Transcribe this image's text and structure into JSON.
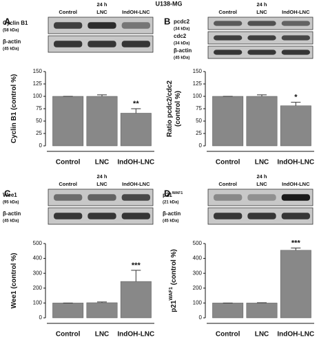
{
  "figure_title": "U138-MG",
  "chart_data": [
    {
      "type": "bar",
      "panel": "A",
      "time_label": "24 h",
      "lanes": [
        "Control",
        "LNC",
        "IndOH-LNC"
      ],
      "blot_rows": [
        {
          "name": [
            {
              "text": "Cyclin B1"
            }
          ],
          "size": "(58 kDa)"
        },
        {
          "name": [
            {
              "text": "β-actin"
            }
          ],
          "size": "(45 kDa)"
        }
      ],
      "ylabel": [
        [
          {
            "text": "Cyclin B1 (control %)"
          }
        ]
      ],
      "categories": [
        "Control",
        "LNC",
        "IndOH-LNC"
      ],
      "values": [
        100,
        100,
        66
      ],
      "errors": [
        0,
        3,
        9
      ],
      "annotations": [
        null,
        null,
        "**"
      ],
      "color": "#888888",
      "ylim": [
        0,
        150
      ],
      "yticks": [
        0,
        25,
        50,
        75,
        100,
        125,
        150
      ]
    },
    {
      "type": "bar",
      "panel": "B",
      "time_label": "24 h",
      "lanes": [
        "Control",
        "LNC",
        "IndOH-LNC"
      ],
      "blot_rows": [
        {
          "name": [
            {
              "text": "pcdc2"
            }
          ],
          "size": "(34 kDa)"
        },
        {
          "name": [
            {
              "text": "cdc2"
            }
          ],
          "size": "(34 kDa)"
        },
        {
          "name": [
            {
              "text": "β-actin"
            }
          ],
          "size": "(45 kDa)"
        }
      ],
      "ylabel": [
        [
          {
            "text": "Ratio pcdc2/cdc2"
          }
        ],
        [
          {
            "text": "(control %)"
          }
        ]
      ],
      "categories": [
        "Control",
        "LNC",
        "IndOH-LNC"
      ],
      "values": [
        100,
        100,
        81
      ],
      "errors": [
        0,
        3,
        7
      ],
      "annotations": [
        null,
        null,
        "*"
      ],
      "color": "#888888",
      "ylim": [
        0,
        150
      ],
      "yticks": [
        0,
        25,
        50,
        75,
        100,
        125,
        150
      ]
    },
    {
      "type": "bar",
      "panel": "C",
      "time_label": "24 h",
      "lanes": [
        "Control",
        "LNC",
        "IndOH-LNC"
      ],
      "blot_rows": [
        {
          "name": [
            {
              "text": "Wee1"
            }
          ],
          "size": "(95 kDa)"
        },
        {
          "name": [
            {
              "text": "β-actin"
            }
          ],
          "size": "(45 kDa)"
        }
      ],
      "ylabel": [
        [
          {
            "text": "Wee1 (control %)"
          }
        ]
      ],
      "categories": [
        "Control",
        "LNC",
        "IndOH-LNC"
      ],
      "values": [
        100,
        102,
        245
      ],
      "errors": [
        0,
        5,
        75
      ],
      "annotations": [
        null,
        null,
        "***"
      ],
      "color": "#888888",
      "ylim": [
        0,
        500
      ],
      "yticks": [
        0,
        100,
        200,
        300,
        400,
        500
      ]
    },
    {
      "type": "bar",
      "panel": "D",
      "time_label": "24 h",
      "lanes": [
        "Control",
        "LNC",
        "IndOH-LNC"
      ],
      "blot_rows": [
        {
          "name": [
            {
              "text": "p21"
            },
            {
              "text": "WAF1",
              "sup": true
            }
          ],
          "size": "(21 kDa)"
        },
        {
          "name": [
            {
              "text": "β-actin"
            }
          ],
          "size": "(45 kDa)"
        }
      ],
      "ylabel": [
        [
          {
            "text": "p21"
          },
          {
            "text": "WAF1",
            "sup": true
          },
          {
            "text": " (control %)"
          }
        ]
      ],
      "categories": [
        "Control",
        "LNC",
        "IndOH-LNC"
      ],
      "values": [
        100,
        100,
        455
      ],
      "errors": [
        0,
        2,
        15
      ],
      "annotations": [
        null,
        null,
        "***"
      ],
      "color": "#888888",
      "ylim": [
        0,
        500
      ],
      "yticks": [
        0,
        100,
        200,
        300,
        400,
        500
      ]
    }
  ]
}
